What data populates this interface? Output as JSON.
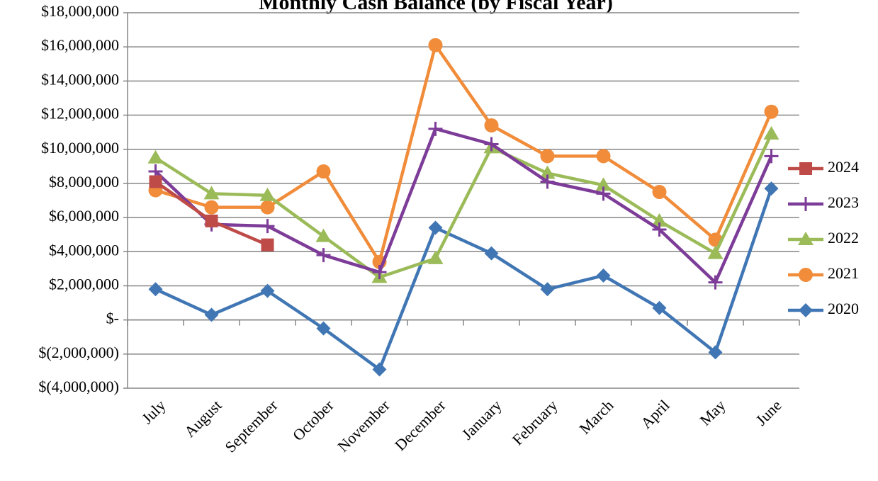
{
  "chart_data": {
    "type": "line",
    "title": "Monthly Cash Balance (by Fiscal Year)",
    "categories": [
      "July",
      "August",
      "September",
      "October",
      "November",
      "December",
      "January",
      "February",
      "March",
      "April",
      "May",
      "June"
    ],
    "series": [
      {
        "name": "2024",
        "color": "#be4b48",
        "marker": "square",
        "values": [
          8100000,
          5800000,
          4400000,
          null,
          null,
          null,
          null,
          null,
          null,
          null,
          null,
          null
        ]
      },
      {
        "name": "2023",
        "color": "#7d3c98",
        "marker": "plus",
        "values": [
          8700000,
          5600000,
          5500000,
          3800000,
          2800000,
          11200000,
          10300000,
          8100000,
          7400000,
          5300000,
          2200000,
          9600000
        ]
      },
      {
        "name": "2022",
        "color": "#9bbb59",
        "marker": "triangle",
        "values": [
          9500000,
          7400000,
          7300000,
          4900000,
          2500000,
          3600000,
          10100000,
          8600000,
          7900000,
          5800000,
          3900000,
          10900000
        ]
      },
      {
        "name": "2021",
        "color": "#f08c3a",
        "marker": "circle",
        "values": [
          7600000,
          6600000,
          6600000,
          8700000,
          3400000,
          16100000,
          11400000,
          9600000,
          9600000,
          7500000,
          4700000,
          12200000
        ]
      },
      {
        "name": "2020",
        "color": "#4076b4",
        "marker": "diamond",
        "values": [
          1800000,
          300000,
          1700000,
          -500000,
          -2900000,
          5400000,
          3900000,
          1800000,
          2600000,
          700000,
          -1900000,
          7700000
        ]
      }
    ],
    "ylim": [
      -4000000,
      18000000
    ],
    "yticks": [
      {
        "value": -4000000,
        "label": "$(4,000,000)"
      },
      {
        "value": -2000000,
        "label": "$(2,000,000)"
      },
      {
        "value": 0,
        "label": "$-"
      },
      {
        "value": 2000000,
        "label": "$2,000,000"
      },
      {
        "value": 4000000,
        "label": "$4,000,000"
      },
      {
        "value": 6000000,
        "label": "$6,000,000"
      },
      {
        "value": 8000000,
        "label": "$8,000,000"
      },
      {
        "value": 10000000,
        "label": "$10,000,000"
      },
      {
        "value": 12000000,
        "label": "$12,000,000"
      },
      {
        "value": 14000000,
        "label": "$14,000,000"
      },
      {
        "value": 16000000,
        "label": "$16,000,000"
      },
      {
        "value": 18000000,
        "label": "$18,000,000"
      }
    ],
    "grid": true,
    "legend": "right"
  }
}
